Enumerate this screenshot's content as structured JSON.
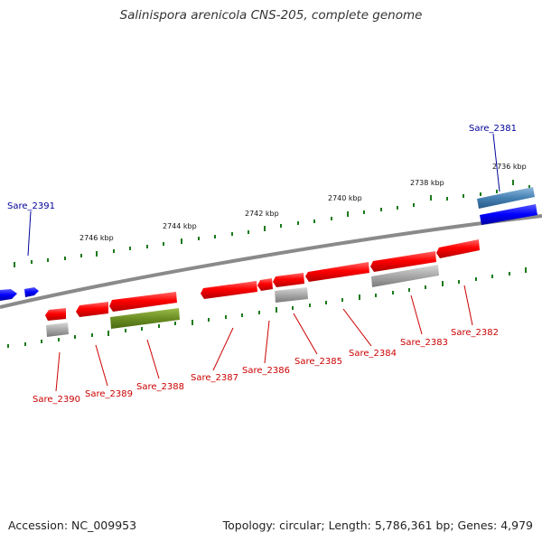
{
  "title": "Salinispora arenicola CNS-205, complete genome",
  "footer": {
    "accession": "Accession: NC_009953",
    "topology": "Topology: circular; Length: 5,786,361 bp; Genes: 4,979"
  },
  "colors": {
    "backbone": "#808080",
    "forward_gene": "#ff1010",
    "reverse_gene": "#ff1010",
    "grey_feature": "#a8a8a8",
    "green_feature": "#6b8e23",
    "blue_feature": "#0000ff",
    "steelblue_feature": "#4682b4",
    "tick": "#1a7a1a",
    "label_red": "#cc0000",
    "label_blue": "#000099"
  },
  "scale_labels": [
    "2746 kbp",
    "2744 kbp",
    "2742 kbp",
    "2740 kbp",
    "2738 kbp",
    "2736 kbp"
  ],
  "gene_labels": [
    "Sare_2391",
    "Sare_2381",
    "Sare_2390",
    "Sare_2389",
    "Sare_2388",
    "Sare_2387",
    "Sare_2386",
    "Sare_2385",
    "Sare_2384",
    "Sare_2383",
    "Sare_2382"
  ]
}
